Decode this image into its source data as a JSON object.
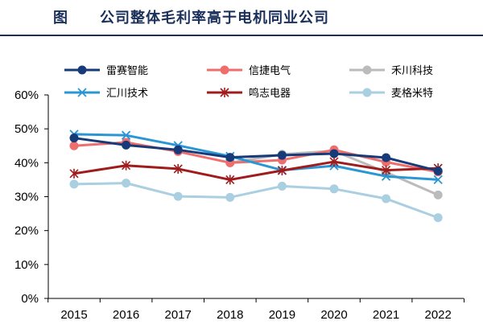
{
  "figure": {
    "label": "图",
    "title": "公司整体毛利率高于电机同业公司"
  },
  "chart_data": {
    "type": "line",
    "title": "公司整体毛利率高于电机同业公司",
    "xlabel": "",
    "ylabel": "",
    "x": [
      "2015",
      "2016",
      "2017",
      "2018",
      "2019",
      "2020",
      "2021",
      "2022"
    ],
    "ylim": [
      0,
      60
    ],
    "yticks": [
      "0%",
      "10%",
      "20%",
      "30%",
      "40%",
      "50%",
      "60%"
    ],
    "y_unit": "%",
    "grid": false,
    "legend_position": "top",
    "series": [
      {
        "name": "雷赛智能",
        "color": "#173a78",
        "marker": "circle",
        "values": [
          47.3,
          45.2,
          43.8,
          41.6,
          42.2,
          42.7,
          41.5,
          37.6
        ]
      },
      {
        "name": "信捷电气",
        "color": "#ee6e6e",
        "marker": "circle",
        "values": [
          45.0,
          46.0,
          43.3,
          40.0,
          40.8,
          43.8,
          40.2,
          37.3
        ]
      },
      {
        "name": "禾川科技",
        "color": "#bbbbbb",
        "marker": "circle",
        "values": [
          null,
          null,
          null,
          40.0,
          42.5,
          43.5,
          37.2,
          30.5
        ]
      },
      {
        "name": "汇川技术",
        "color": "#2a96d4",
        "marker": "x",
        "values": [
          48.4,
          48.1,
          45.1,
          41.9,
          37.8,
          39.1,
          36.0,
          35.0
        ]
      },
      {
        "name": "鸣志电器",
        "color": "#a01c1c",
        "marker": "star",
        "values": [
          36.8,
          39.2,
          38.2,
          35.0,
          37.7,
          40.3,
          37.8,
          38.4
        ]
      },
      {
        "name": "麦格米特",
        "color": "#a9cfe0",
        "marker": "circle",
        "values": [
          33.7,
          34.0,
          30.1,
          29.8,
          33.1,
          32.3,
          29.4,
          23.8
        ]
      }
    ]
  }
}
